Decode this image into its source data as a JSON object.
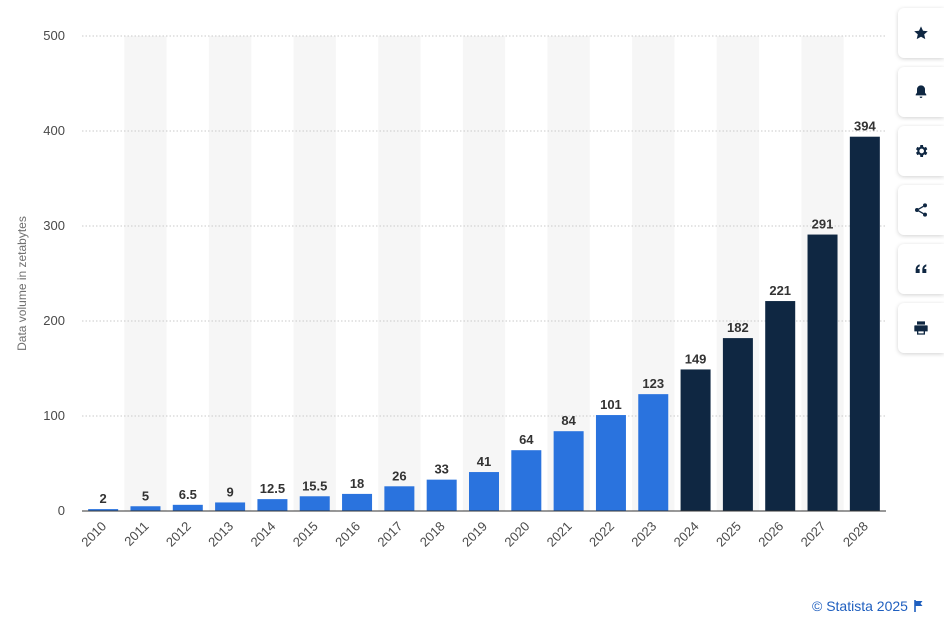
{
  "chart_data": {
    "type": "bar",
    "categories": [
      "2010",
      "2011",
      "2012",
      "2013",
      "2014",
      "2015",
      "2016",
      "2017",
      "2018",
      "2019",
      "2020",
      "2021",
      "2022",
      "2023",
      "2024",
      "2025",
      "2026",
      "2027",
      "2028"
    ],
    "values": [
      2,
      5,
      6.5,
      9,
      12.5,
      15.5,
      18,
      26,
      33,
      41,
      64,
      84,
      101,
      123,
      149,
      182,
      221,
      291,
      394
    ],
    "labels": [
      "2",
      "5",
      "6.5",
      "9",
      "12.5",
      "15.5",
      "18",
      "26",
      "33",
      "41",
      "64",
      "84",
      "101",
      "123",
      "149",
      "182",
      "221",
      "291",
      "394"
    ],
    "ylabel": "Data volume in zetabytes",
    "ylim": [
      0,
      500
    ],
    "yticks": [
      0,
      100,
      200,
      300,
      400,
      500
    ],
    "grid": true,
    "colors": {
      "actual": "#2a73de",
      "forecast": "#0f2742",
      "band": "#f6f6f6",
      "grid": "#c9c9c9"
    },
    "forecast_from_index": 14
  },
  "toolbar": {
    "items": [
      {
        "icon": "star-icon"
      },
      {
        "icon": "bell-icon"
      },
      {
        "icon": "gear-icon"
      },
      {
        "icon": "share-icon"
      },
      {
        "icon": "quote-icon"
      },
      {
        "icon": "print-icon"
      }
    ]
  },
  "credit": {
    "text": "© Statista 2025",
    "icon": "flag-icon"
  }
}
